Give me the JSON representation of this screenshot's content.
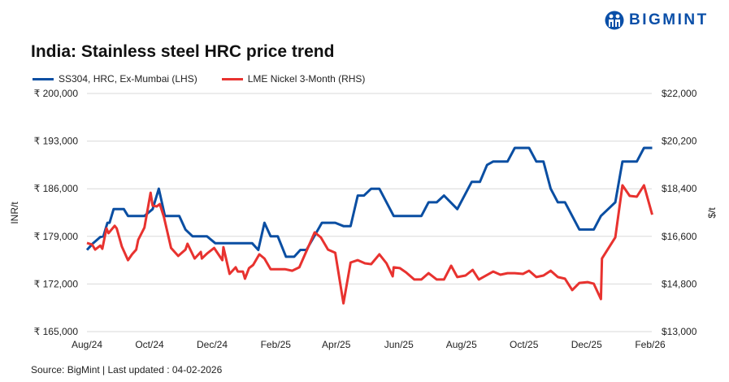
{
  "logo": {
    "text": "BIGMINT"
  },
  "chart_data": {
    "type": "line",
    "title": "India: Stainless steel HRC price trend",
    "source": "Source: BigMint | Last updated : 04-02-2026",
    "ylabel_left": "INR/t",
    "ylabel_right": "$/t",
    "ylim_left": [
      165000,
      200000
    ],
    "ylim_right": [
      13000,
      22000
    ],
    "xlim": [
      "2024-08-01",
      "2026-02-01"
    ],
    "grid": true,
    "legend_position": "top-left",
    "yticks_left": [
      "₹ 200,000",
      "₹ 193,000",
      "₹ 186,000",
      "₹ 179,000",
      "₹ 172,000",
      "₹ 165,000"
    ],
    "yticks_right": [
      "$22,000",
      "$20,200",
      "$18,400",
      "$16,600",
      "$14,800",
      "$13,000"
    ],
    "xticks": [
      {
        "date": "2024-08-01",
        "label": "Aug/24"
      },
      {
        "date": "2024-10-01",
        "label": "Oct/24"
      },
      {
        "date": "2024-12-01",
        "label": "Dec/24"
      },
      {
        "date": "2025-02-01",
        "label": "Feb/25"
      },
      {
        "date": "2025-04-01",
        "label": "Apr/25"
      },
      {
        "date": "2025-06-01",
        "label": "Jun/25"
      },
      {
        "date": "2025-08-01",
        "label": "Aug/25"
      },
      {
        "date": "2025-10-01",
        "label": "Oct/25"
      },
      {
        "date": "2025-12-01",
        "label": "Dec/25"
      },
      {
        "date": "2026-02-01",
        "label": "Feb/26"
      }
    ],
    "series": [
      {
        "name": "SS304, HRC, Ex-Mumbai (LHS)",
        "axis": "left",
        "color": "#0a4ea2",
        "points": [
          [
            "2024-08-01",
            177000
          ],
          [
            "2024-08-07",
            178000
          ],
          [
            "2024-08-14",
            178900
          ],
          [
            "2024-08-17",
            179000
          ],
          [
            "2024-08-21",
            181000
          ],
          [
            "2024-08-23",
            181000
          ],
          [
            "2024-08-27",
            183000
          ],
          [
            "2024-09-06",
            183000
          ],
          [
            "2024-09-10",
            182000
          ],
          [
            "2024-09-26",
            182000
          ],
          [
            "2024-10-04",
            183000
          ],
          [
            "2024-10-10",
            186000
          ],
          [
            "2024-10-16",
            182000
          ],
          [
            "2024-10-30",
            182000
          ],
          [
            "2024-11-05",
            180000
          ],
          [
            "2024-11-12",
            179000
          ],
          [
            "2024-11-26",
            179000
          ],
          [
            "2024-12-04",
            178000
          ],
          [
            "2025-01-09",
            178000
          ],
          [
            "2025-01-15",
            177000
          ],
          [
            "2025-01-21",
            181000
          ],
          [
            "2025-01-27",
            179000
          ],
          [
            "2025-02-03",
            179000
          ],
          [
            "2025-02-11",
            176000
          ],
          [
            "2025-02-19",
            176000
          ],
          [
            "2025-02-25",
            177000
          ],
          [
            "2025-03-03",
            177000
          ],
          [
            "2025-03-18",
            181000
          ],
          [
            "2025-03-31",
            181000
          ],
          [
            "2025-04-08",
            180500
          ],
          [
            "2025-04-15",
            180500
          ],
          [
            "2025-04-22",
            185000
          ],
          [
            "2025-04-28",
            185000
          ],
          [
            "2025-05-05",
            186000
          ],
          [
            "2025-05-13",
            186000
          ],
          [
            "2025-05-27",
            182000
          ],
          [
            "2025-06-23",
            182000
          ],
          [
            "2025-06-30",
            184000
          ],
          [
            "2025-07-08",
            184000
          ],
          [
            "2025-07-15",
            185000
          ],
          [
            "2025-07-28",
            183000
          ],
          [
            "2025-08-11",
            187000
          ],
          [
            "2025-08-19",
            187000
          ],
          [
            "2025-08-26",
            189500
          ],
          [
            "2025-09-01",
            190000
          ],
          [
            "2025-09-15",
            190000
          ],
          [
            "2025-09-22",
            192000
          ],
          [
            "2025-10-06",
            192000
          ],
          [
            "2025-10-13",
            190000
          ],
          [
            "2025-10-20",
            190000
          ],
          [
            "2025-10-27",
            186000
          ],
          [
            "2025-11-03",
            184000
          ],
          [
            "2025-11-10",
            184000
          ],
          [
            "2025-11-24",
            180000
          ],
          [
            "2025-12-08",
            180000
          ],
          [
            "2025-12-15",
            182000
          ],
          [
            "2025-12-29",
            184000
          ],
          [
            "2026-01-05",
            190000
          ],
          [
            "2026-01-19",
            190000
          ],
          [
            "2026-01-26",
            192000
          ],
          [
            "2026-02-03",
            192000
          ]
        ]
      },
      {
        "name": "LME Nickel 3-Month (RHS)",
        "axis": "right",
        "color": "#e8322f",
        "points": [
          [
            "2024-08-01",
            16350
          ],
          [
            "2024-08-06",
            16290
          ],
          [
            "2024-08-09",
            16100
          ],
          [
            "2024-08-14",
            16250
          ],
          [
            "2024-08-16",
            16130
          ],
          [
            "2024-08-20",
            16900
          ],
          [
            "2024-08-22",
            16720
          ],
          [
            "2024-08-28",
            17000
          ],
          [
            "2024-08-30",
            16900
          ],
          [
            "2024-09-04",
            16220
          ],
          [
            "2024-09-10",
            15700
          ],
          [
            "2024-09-14",
            15920
          ],
          [
            "2024-09-18",
            16100
          ],
          [
            "2024-09-20",
            16470
          ],
          [
            "2024-09-26",
            16930
          ],
          [
            "2024-10-02",
            18250
          ],
          [
            "2024-10-04",
            17760
          ],
          [
            "2024-10-08",
            17730
          ],
          [
            "2024-10-11",
            17820
          ],
          [
            "2024-10-15",
            17330
          ],
          [
            "2024-10-22",
            16160
          ],
          [
            "2024-10-29",
            15860
          ],
          [
            "2024-11-05",
            16100
          ],
          [
            "2024-11-07",
            16320
          ],
          [
            "2024-11-14",
            15760
          ],
          [
            "2024-11-20",
            16010
          ],
          [
            "2024-11-21",
            15760
          ],
          [
            "2024-11-26",
            15950
          ],
          [
            "2024-12-03",
            16160
          ],
          [
            "2024-12-11",
            15700
          ],
          [
            "2024-12-12",
            16190
          ],
          [
            "2024-12-18",
            15180
          ],
          [
            "2024-12-24",
            15430
          ],
          [
            "2024-12-26",
            15270
          ],
          [
            "2024-12-31",
            15270
          ],
          [
            "2025-01-02",
            15000
          ],
          [
            "2025-01-06",
            15400
          ],
          [
            "2025-01-10",
            15520
          ],
          [
            "2025-01-16",
            15920
          ],
          [
            "2025-01-21",
            15760
          ],
          [
            "2025-01-27",
            15360
          ],
          [
            "2025-02-10",
            15360
          ],
          [
            "2025-02-17",
            15300
          ],
          [
            "2025-02-24",
            15430
          ],
          [
            "2025-03-11",
            16750
          ],
          [
            "2025-03-17",
            16560
          ],
          [
            "2025-03-24",
            16100
          ],
          [
            "2025-03-31",
            15980
          ],
          [
            "2025-04-08",
            14070
          ],
          [
            "2025-04-15",
            15610
          ],
          [
            "2025-04-22",
            15700
          ],
          [
            "2025-04-29",
            15580
          ],
          [
            "2025-05-05",
            15550
          ],
          [
            "2025-05-13",
            15920
          ],
          [
            "2025-05-20",
            15580
          ],
          [
            "2025-05-26",
            15090
          ],
          [
            "2025-05-27",
            15430
          ],
          [
            "2025-06-02",
            15400
          ],
          [
            "2025-06-08",
            15240
          ],
          [
            "2025-06-16",
            14970
          ],
          [
            "2025-06-23",
            14970
          ],
          [
            "2025-06-30",
            15210
          ],
          [
            "2025-07-08",
            14970
          ],
          [
            "2025-07-15",
            14970
          ],
          [
            "2025-07-22",
            15490
          ],
          [
            "2025-07-28",
            15060
          ],
          [
            "2025-08-05",
            15120
          ],
          [
            "2025-08-12",
            15330
          ],
          [
            "2025-08-18",
            14970
          ],
          [
            "2025-09-01",
            15270
          ],
          [
            "2025-09-08",
            15150
          ],
          [
            "2025-09-15",
            15210
          ],
          [
            "2025-09-22",
            15210
          ],
          [
            "2025-09-30",
            15180
          ],
          [
            "2025-10-06",
            15300
          ],
          [
            "2025-10-13",
            15060
          ],
          [
            "2025-10-20",
            15120
          ],
          [
            "2025-10-27",
            15300
          ],
          [
            "2025-11-03",
            15060
          ],
          [
            "2025-11-10",
            15000
          ],
          [
            "2025-11-17",
            14570
          ],
          [
            "2025-11-24",
            14840
          ],
          [
            "2025-12-02",
            14870
          ],
          [
            "2025-12-08",
            14810
          ],
          [
            "2025-12-15",
            14230
          ],
          [
            "2025-12-16",
            15760
          ],
          [
            "2025-12-29",
            16560
          ],
          [
            "2026-01-05",
            18530
          ],
          [
            "2026-01-12",
            18130
          ],
          [
            "2026-01-19",
            18100
          ],
          [
            "2026-01-26",
            18530
          ],
          [
            "2026-02-03",
            17420
          ]
        ]
      }
    ]
  }
}
